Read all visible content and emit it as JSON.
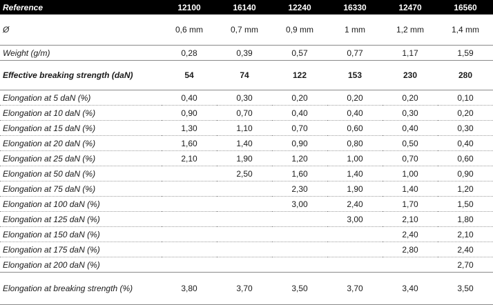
{
  "table": {
    "header": {
      "label": "Reference",
      "refs": [
        "12100",
        "16140",
        "12240",
        "16330",
        "12470",
        "16560"
      ]
    },
    "diameter": {
      "label": "Ø",
      "values": [
        "0,6 mm",
        "0,7 mm",
        "0,9 mm",
        "1 mm",
        "1,2 mm",
        "1,4 mm"
      ]
    },
    "weight": {
      "label": "Weight (g/m)",
      "values": [
        "0,28",
        "0,39",
        "0,57",
        "0,77",
        "1,17",
        "1,59"
      ]
    },
    "breaking": {
      "label": "Effective breaking strength (daN)",
      "values": [
        "54",
        "74",
        "122",
        "153",
        "230",
        "280"
      ]
    },
    "elongations": [
      {
        "label": "Elongation at 5 daN (%)",
        "values": [
          "0,40",
          "0,30",
          "0,20",
          "0,20",
          "0,20",
          "0,10"
        ]
      },
      {
        "label": "Elongation at 10 daN (%)",
        "values": [
          "0,90",
          "0,70",
          "0,40",
          "0,40",
          "0,30",
          "0,20"
        ]
      },
      {
        "label": "Elongation at 15 daN (%)",
        "values": [
          "1,30",
          "1,10",
          "0,70",
          "0,60",
          "0,40",
          "0,30"
        ]
      },
      {
        "label": "Elongation at 20 daN (%)",
        "values": [
          "1,60",
          "1,40",
          "0,90",
          "0,80",
          "0,50",
          "0,40"
        ]
      },
      {
        "label": "Elongation at 25 daN (%)",
        "values": [
          "2,10",
          "1,90",
          "1,20",
          "1,00",
          "0,70",
          "0,60"
        ]
      },
      {
        "label": "Elongation at 50 daN (%)",
        "values": [
          "",
          "2,50",
          "1,60",
          "1,40",
          "1,00",
          "0,90"
        ]
      },
      {
        "label": "Elongation at 75 daN (%)",
        "values": [
          "",
          "",
          "2,30",
          "1,90",
          "1,40",
          "1,20"
        ]
      },
      {
        "label": "Elongation at 100 daN (%)",
        "values": [
          "",
          "",
          "3,00",
          "2,40",
          "1,70",
          "1,50"
        ]
      },
      {
        "label": "Elongation at 125 daN (%)",
        "values": [
          "",
          "",
          "",
          "3,00",
          "2,10",
          "1,80"
        ]
      },
      {
        "label": "Elongation at 150 daN (%)",
        "values": [
          "",
          "",
          "",
          "",
          "2,40",
          "2,10"
        ]
      },
      {
        "label": "Elongation at 175 daN (%)",
        "values": [
          "",
          "",
          "",
          "",
          "2,80",
          "2,40"
        ]
      },
      {
        "label": "Elongation at 200 daN (%)",
        "values": [
          "",
          "",
          "",
          "",
          "",
          "2,70"
        ]
      }
    ],
    "breaking_elongation": {
      "label": "Elongation at breaking strength (%)",
      "values": [
        "3,80",
        "3,70",
        "3,50",
        "3,70",
        "3,40",
        "3,50"
      ]
    }
  }
}
